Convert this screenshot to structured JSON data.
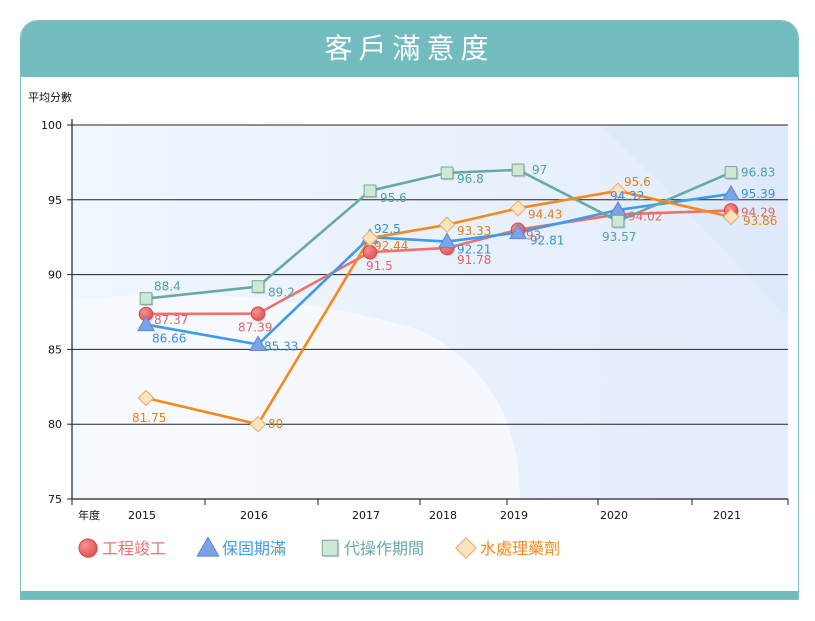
{
  "page": {
    "title": "客戶滿意度"
  },
  "chart_data": {
    "type": "line",
    "title": "客戶滿意度",
    "ylabel": "平均分數",
    "xlabel": "年度",
    "ylim": [
      75,
      100
    ],
    "yticks": [
      75,
      80,
      85,
      90,
      95,
      100
    ],
    "categories": [
      "2015",
      "2016",
      "2017",
      "2018",
      "2019",
      "2020",
      "2021"
    ],
    "grid": true,
    "legend": "bottom-left",
    "series": [
      {
        "name": "工程竣工",
        "marker": "circle",
        "color": "#f07070",
        "label_color": "#e06666",
        "values": [
          87.37,
          87.39,
          91.5,
          91.78,
          93,
          94.02,
          94.29
        ],
        "labels": [
          "87.37",
          "87.39",
          "91.5",
          "91.78",
          "93",
          "94.02",
          "94.29"
        ]
      },
      {
        "name": "保固期滿",
        "marker": "triangle",
        "color": "#3d9be9",
        "label_color": "#3d8fd9",
        "values": [
          86.66,
          85.33,
          92.5,
          92.21,
          92.81,
          94.32,
          95.39
        ],
        "labels": [
          "86.66",
          "85.33",
          "92.5",
          "92.21",
          "92.81",
          "94.32",
          "95.39"
        ]
      },
      {
        "name": "代操作期間",
        "marker": "square",
        "color": "#66aaa8",
        "label_color": "#55a09e",
        "values": [
          88.4,
          89.2,
          95.6,
          96.8,
          97,
          93.57,
          96.83
        ],
        "labels": [
          "88.4",
          "89.2",
          "95.6",
          "96.8",
          "97",
          "93.57",
          "96.83"
        ]
      },
      {
        "name": "水處理藥劑",
        "marker": "diamond",
        "color": "#f5891e",
        "label_color": "#e8801a",
        "values": [
          81.75,
          80,
          92.44,
          93.33,
          94.43,
          95.6,
          93.86
        ],
        "labels": [
          "81.75",
          "80",
          "92.44",
          "93.33",
          "94.43",
          "95.6",
          "93.86"
        ]
      }
    ]
  }
}
